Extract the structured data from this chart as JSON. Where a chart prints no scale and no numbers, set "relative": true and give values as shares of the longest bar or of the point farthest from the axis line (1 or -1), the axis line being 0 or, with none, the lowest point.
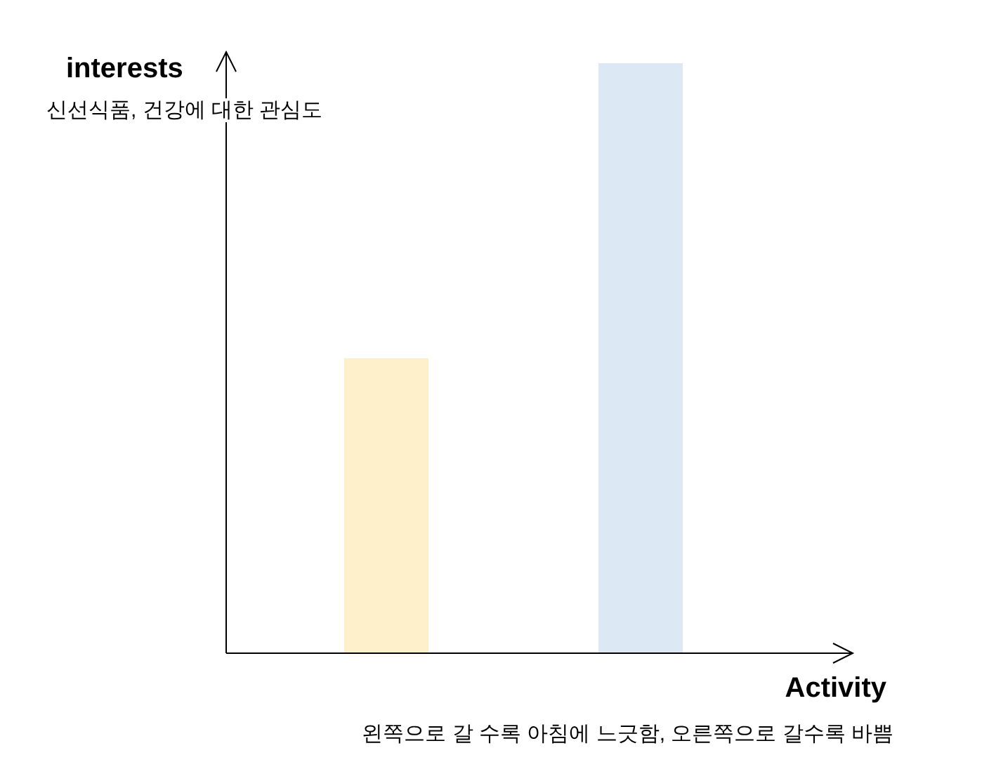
{
  "chart_data": {
    "type": "bar",
    "relative": true,
    "categories": [
      null,
      null
    ],
    "values": [
      0.5,
      1
    ],
    "colors": [
      "#fff0cc",
      "#dde8f5"
    ],
    "ylabel": "interests",
    "xlabel": "Activity",
    "annotations": [
      "신선식품, 건강에 대한 관심도",
      "왼쪽으로 갈 수록 아침에 느긋함, 오른쪽으로 갈수록 바쁨"
    ]
  }
}
